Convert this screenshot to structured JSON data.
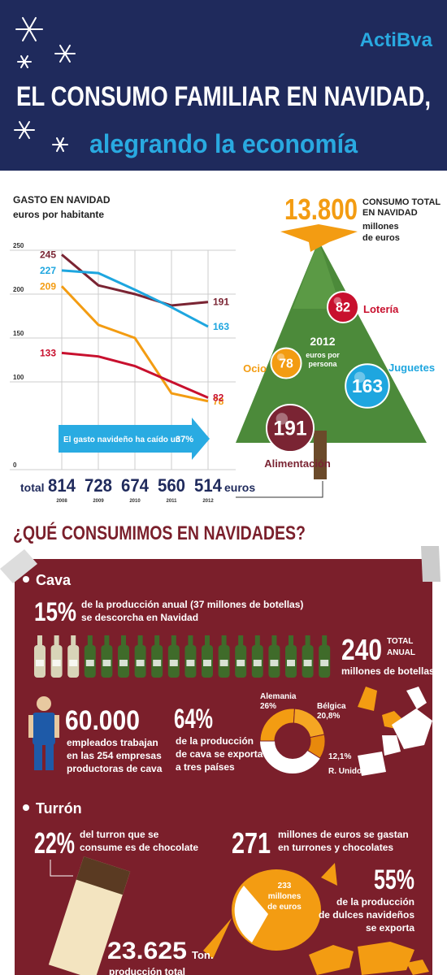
{
  "header": {
    "logo": "ActiBva",
    "title": "EL CONSUMO FAMILIAR EN NAVIDAD,",
    "subtitle": "alegrando la economía"
  },
  "chart_data": {
    "type": "line",
    "title": "GASTO EN NAVIDAD",
    "subtitle": "euros por habitante",
    "categories": [
      "2008",
      "2009",
      "2010",
      "2011",
      "2012"
    ],
    "series": [
      {
        "name": "Alimentación",
        "color": "#7a2433",
        "values": [
          245,
          210,
          200,
          187,
          191
        ]
      },
      {
        "name": "Juguetes",
        "color": "#1ea6df",
        "values": [
          227,
          224,
          205,
          185,
          163
        ]
      },
      {
        "name": "Ocio",
        "color": "#f39c12",
        "values": [
          209,
          165,
          150,
          87,
          78
        ]
      },
      {
        "name": "Lotería",
        "color": "#c8102e",
        "values": [
          133,
          129,
          118,
          100,
          82
        ]
      }
    ],
    "ylim": [
      0,
      250
    ],
    "yticks": [
      0,
      100,
      150,
      200,
      250
    ],
    "grid": true,
    "total_label": "total",
    "totals": [
      814,
      728,
      674,
      560,
      514
    ],
    "total_unit": "euros",
    "annotation": [
      "El gasto navideño ha caído un",
      "37%"
    ]
  },
  "tree": {
    "total": "13.800",
    "total_label": [
      "CONSUMO TOTAL",
      "EN NAVIDAD"
    ],
    "total_unit": [
      "millones",
      "de euros"
    ],
    "center": [
      "2012",
      "euros por",
      "persona"
    ]
  },
  "section_title": "¿QUÉ CONSUMIMOS EN NAVIDADES?",
  "cava": {
    "heading": "Cava",
    "share": "15%",
    "share_text": [
      "de la producción anual (37 millones de botellas)",
      "se descorcha en Navidad"
    ],
    "bottles_total": "240",
    "bottles_total_label": [
      "TOTAL",
      "ANUAL"
    ],
    "bottles_unit": "millones de botellas",
    "employees": "60.000",
    "employees_text": [
      "empleados trabajan",
      "en las 254 empresas",
      "productoras de cava"
    ],
    "export": "64%",
    "export_text": [
      "de la producción",
      "de cava se exporta",
      "a tres países"
    ],
    "export_countries": {
      "labels": [
        "Alemania",
        "Bélgica",
        "R. Unido"
      ],
      "values": [
        26,
        20.8,
        12.1
      ],
      "value_labels": [
        "26%",
        "20,8%",
        "12,1%"
      ]
    }
  },
  "turron": {
    "heading": "Turrón",
    "chocolate": "22%",
    "chocolate_text": [
      "del turron que se",
      "consume es de chocolate"
    ],
    "spend": "271",
    "spend_text": [
      "millones de euros se gastan",
      "en turrones y chocolates"
    ],
    "export": "55%",
    "export_text": [
      "de la producción",
      "de dulces navideños",
      "se exporta"
    ],
    "candy": [
      "233",
      "millones",
      "de euros"
    ],
    "production": "23.625",
    "production_unit": "Ton.",
    "production_text": "producción total"
  }
}
